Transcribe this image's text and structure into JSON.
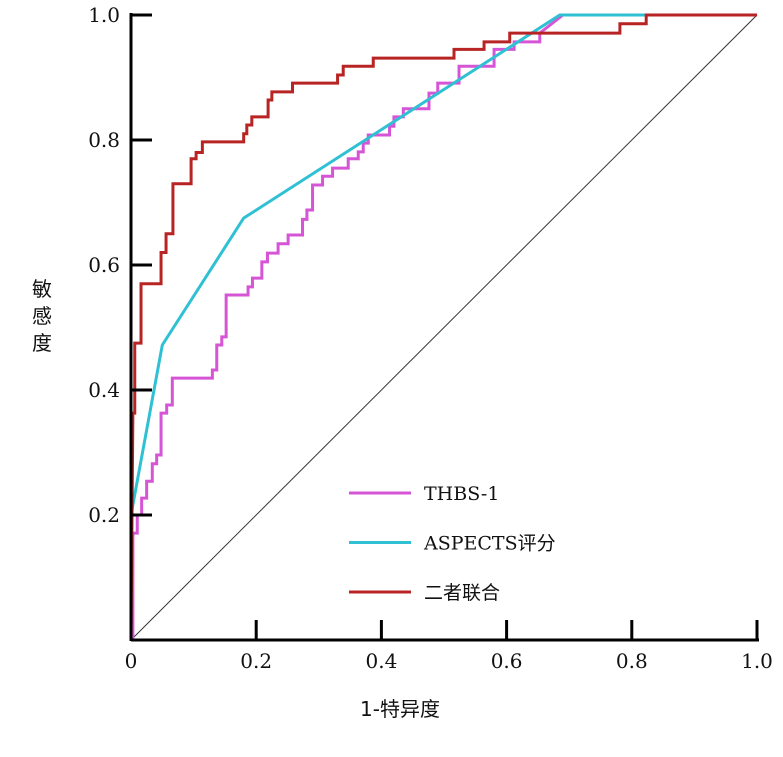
{
  "chart_data": {
    "type": "line",
    "title": "",
    "xlabel": "1-特异度",
    "ylabel": "敏感度",
    "xlim": [
      0,
      1
    ],
    "ylim": [
      0,
      1
    ],
    "x_ticks": [
      "0",
      "0.2",
      "0.4",
      "0.6",
      "0.8",
      "1.0"
    ],
    "y_ticks": [
      "0.2",
      "0.4",
      "0.6",
      "0.8",
      "1.0"
    ],
    "grid": false,
    "legend_position": "bottom-center",
    "reference_line": [
      [
        0,
        0
      ],
      [
        1,
        1
      ]
    ],
    "series": [
      {
        "name": "THBS-1",
        "color": "#d655d6",
        "step": true,
        "points": [
          [
            0.003,
            0
          ],
          [
            0.003,
            0.171
          ],
          [
            0.01,
            0.171
          ],
          [
            0.01,
            0.2
          ],
          [
            0.017,
            0.2
          ],
          [
            0.017,
            0.227
          ],
          [
            0.025,
            0.227
          ],
          [
            0.025,
            0.254
          ],
          [
            0.034,
            0.254
          ],
          [
            0.034,
            0.282
          ],
          [
            0.041,
            0.282
          ],
          [
            0.041,
            0.296
          ],
          [
            0.048,
            0.296
          ],
          [
            0.048,
            0.363
          ],
          [
            0.057,
            0.363
          ],
          [
            0.057,
            0.376
          ],
          [
            0.066,
            0.376
          ],
          [
            0.066,
            0.419
          ],
          [
            0.13,
            0.419
          ],
          [
            0.13,
            0.432
          ],
          [
            0.137,
            0.432
          ],
          [
            0.137,
            0.472
          ],
          [
            0.145,
            0.472
          ],
          [
            0.145,
            0.485
          ],
          [
            0.152,
            0.485
          ],
          [
            0.152,
            0.552
          ],
          [
            0.187,
            0.552
          ],
          [
            0.187,
            0.565
          ],
          [
            0.194,
            0.565
          ],
          [
            0.194,
            0.579
          ],
          [
            0.209,
            0.579
          ],
          [
            0.209,
            0.605
          ],
          [
            0.218,
            0.605
          ],
          [
            0.218,
            0.619
          ],
          [
            0.235,
            0.619
          ],
          [
            0.235,
            0.634
          ],
          [
            0.251,
            0.634
          ],
          [
            0.251,
            0.648
          ],
          [
            0.274,
            0.648
          ],
          [
            0.274,
            0.673
          ],
          [
            0.281,
            0.673
          ],
          [
            0.281,
            0.688
          ],
          [
            0.29,
            0.688
          ],
          [
            0.29,
            0.728
          ],
          [
            0.306,
            0.728
          ],
          [
            0.306,
            0.742
          ],
          [
            0.322,
            0.742
          ],
          [
            0.322,
            0.755
          ],
          [
            0.347,
            0.755
          ],
          [
            0.347,
            0.77
          ],
          [
            0.363,
            0.77
          ],
          [
            0.363,
            0.781
          ],
          [
            0.371,
            0.781
          ],
          [
            0.371,
            0.795
          ],
          [
            0.379,
            0.795
          ],
          [
            0.379,
            0.808
          ],
          [
            0.413,
            0.808
          ],
          [
            0.413,
            0.822
          ],
          [
            0.42,
            0.822
          ],
          [
            0.42,
            0.837
          ],
          [
            0.435,
            0.837
          ],
          [
            0.435,
            0.85
          ],
          [
            0.476,
            0.85
          ],
          [
            0.476,
            0.875
          ],
          [
            0.49,
            0.875
          ],
          [
            0.49,
            0.891
          ],
          [
            0.524,
            0.891
          ],
          [
            0.524,
            0.918
          ],
          [
            0.58,
            0.918
          ],
          [
            0.58,
            0.945
          ],
          [
            0.612,
            0.945
          ],
          [
            0.612,
            0.957
          ],
          [
            0.653,
            0.957
          ],
          [
            0.653,
            0.971
          ],
          [
            0.69,
            1.0
          ],
          [
            1.0,
            1.0
          ]
        ]
      },
      {
        "name": "ASPECTS评分",
        "color": "#2fc1d3",
        "step": false,
        "points": [
          [
            0,
            0
          ],
          [
            0,
            0.2
          ],
          [
            0.05,
            0.472
          ],
          [
            0.18,
            0.675
          ],
          [
            0.685,
            1.0
          ],
          [
            1.0,
            1.0
          ]
        ]
      },
      {
        "name": "二者联合",
        "color": "#b82424",
        "step": true,
        "points": [
          [
            0,
            0
          ],
          [
            0.003,
            0.363
          ],
          [
            0.006,
            0.363
          ],
          [
            0.006,
            0.475
          ],
          [
            0.016,
            0.475
          ],
          [
            0.016,
            0.57
          ],
          [
            0.048,
            0.57
          ],
          [
            0.048,
            0.62
          ],
          [
            0.056,
            0.62
          ],
          [
            0.056,
            0.65
          ],
          [
            0.067,
            0.65
          ],
          [
            0.067,
            0.73
          ],
          [
            0.096,
            0.73
          ],
          [
            0.096,
            0.77
          ],
          [
            0.104,
            0.77
          ],
          [
            0.104,
            0.78
          ],
          [
            0.114,
            0.78
          ],
          [
            0.114,
            0.797
          ],
          [
            0.18,
            0.797
          ],
          [
            0.18,
            0.81
          ],
          [
            0.185,
            0.81
          ],
          [
            0.185,
            0.824
          ],
          [
            0.193,
            0.824
          ],
          [
            0.193,
            0.837
          ],
          [
            0.219,
            0.837
          ],
          [
            0.219,
            0.864
          ],
          [
            0.225,
            0.864
          ],
          [
            0.225,
            0.877
          ],
          [
            0.258,
            0.877
          ],
          [
            0.258,
            0.891
          ],
          [
            0.33,
            0.891
          ],
          [
            0.33,
            0.904
          ],
          [
            0.339,
            0.904
          ],
          [
            0.339,
            0.918
          ],
          [
            0.387,
            0.918
          ],
          [
            0.387,
            0.931
          ],
          [
            0.516,
            0.931
          ],
          [
            0.516,
            0.945
          ],
          [
            0.564,
            0.945
          ],
          [
            0.564,
            0.957
          ],
          [
            0.605,
            0.957
          ],
          [
            0.605,
            0.971
          ],
          [
            0.781,
            0.971
          ],
          [
            0.781,
            0.986
          ],
          [
            0.823,
            0.986
          ],
          [
            0.823,
            1.0
          ],
          [
            1.0,
            1.0
          ]
        ]
      }
    ]
  }
}
